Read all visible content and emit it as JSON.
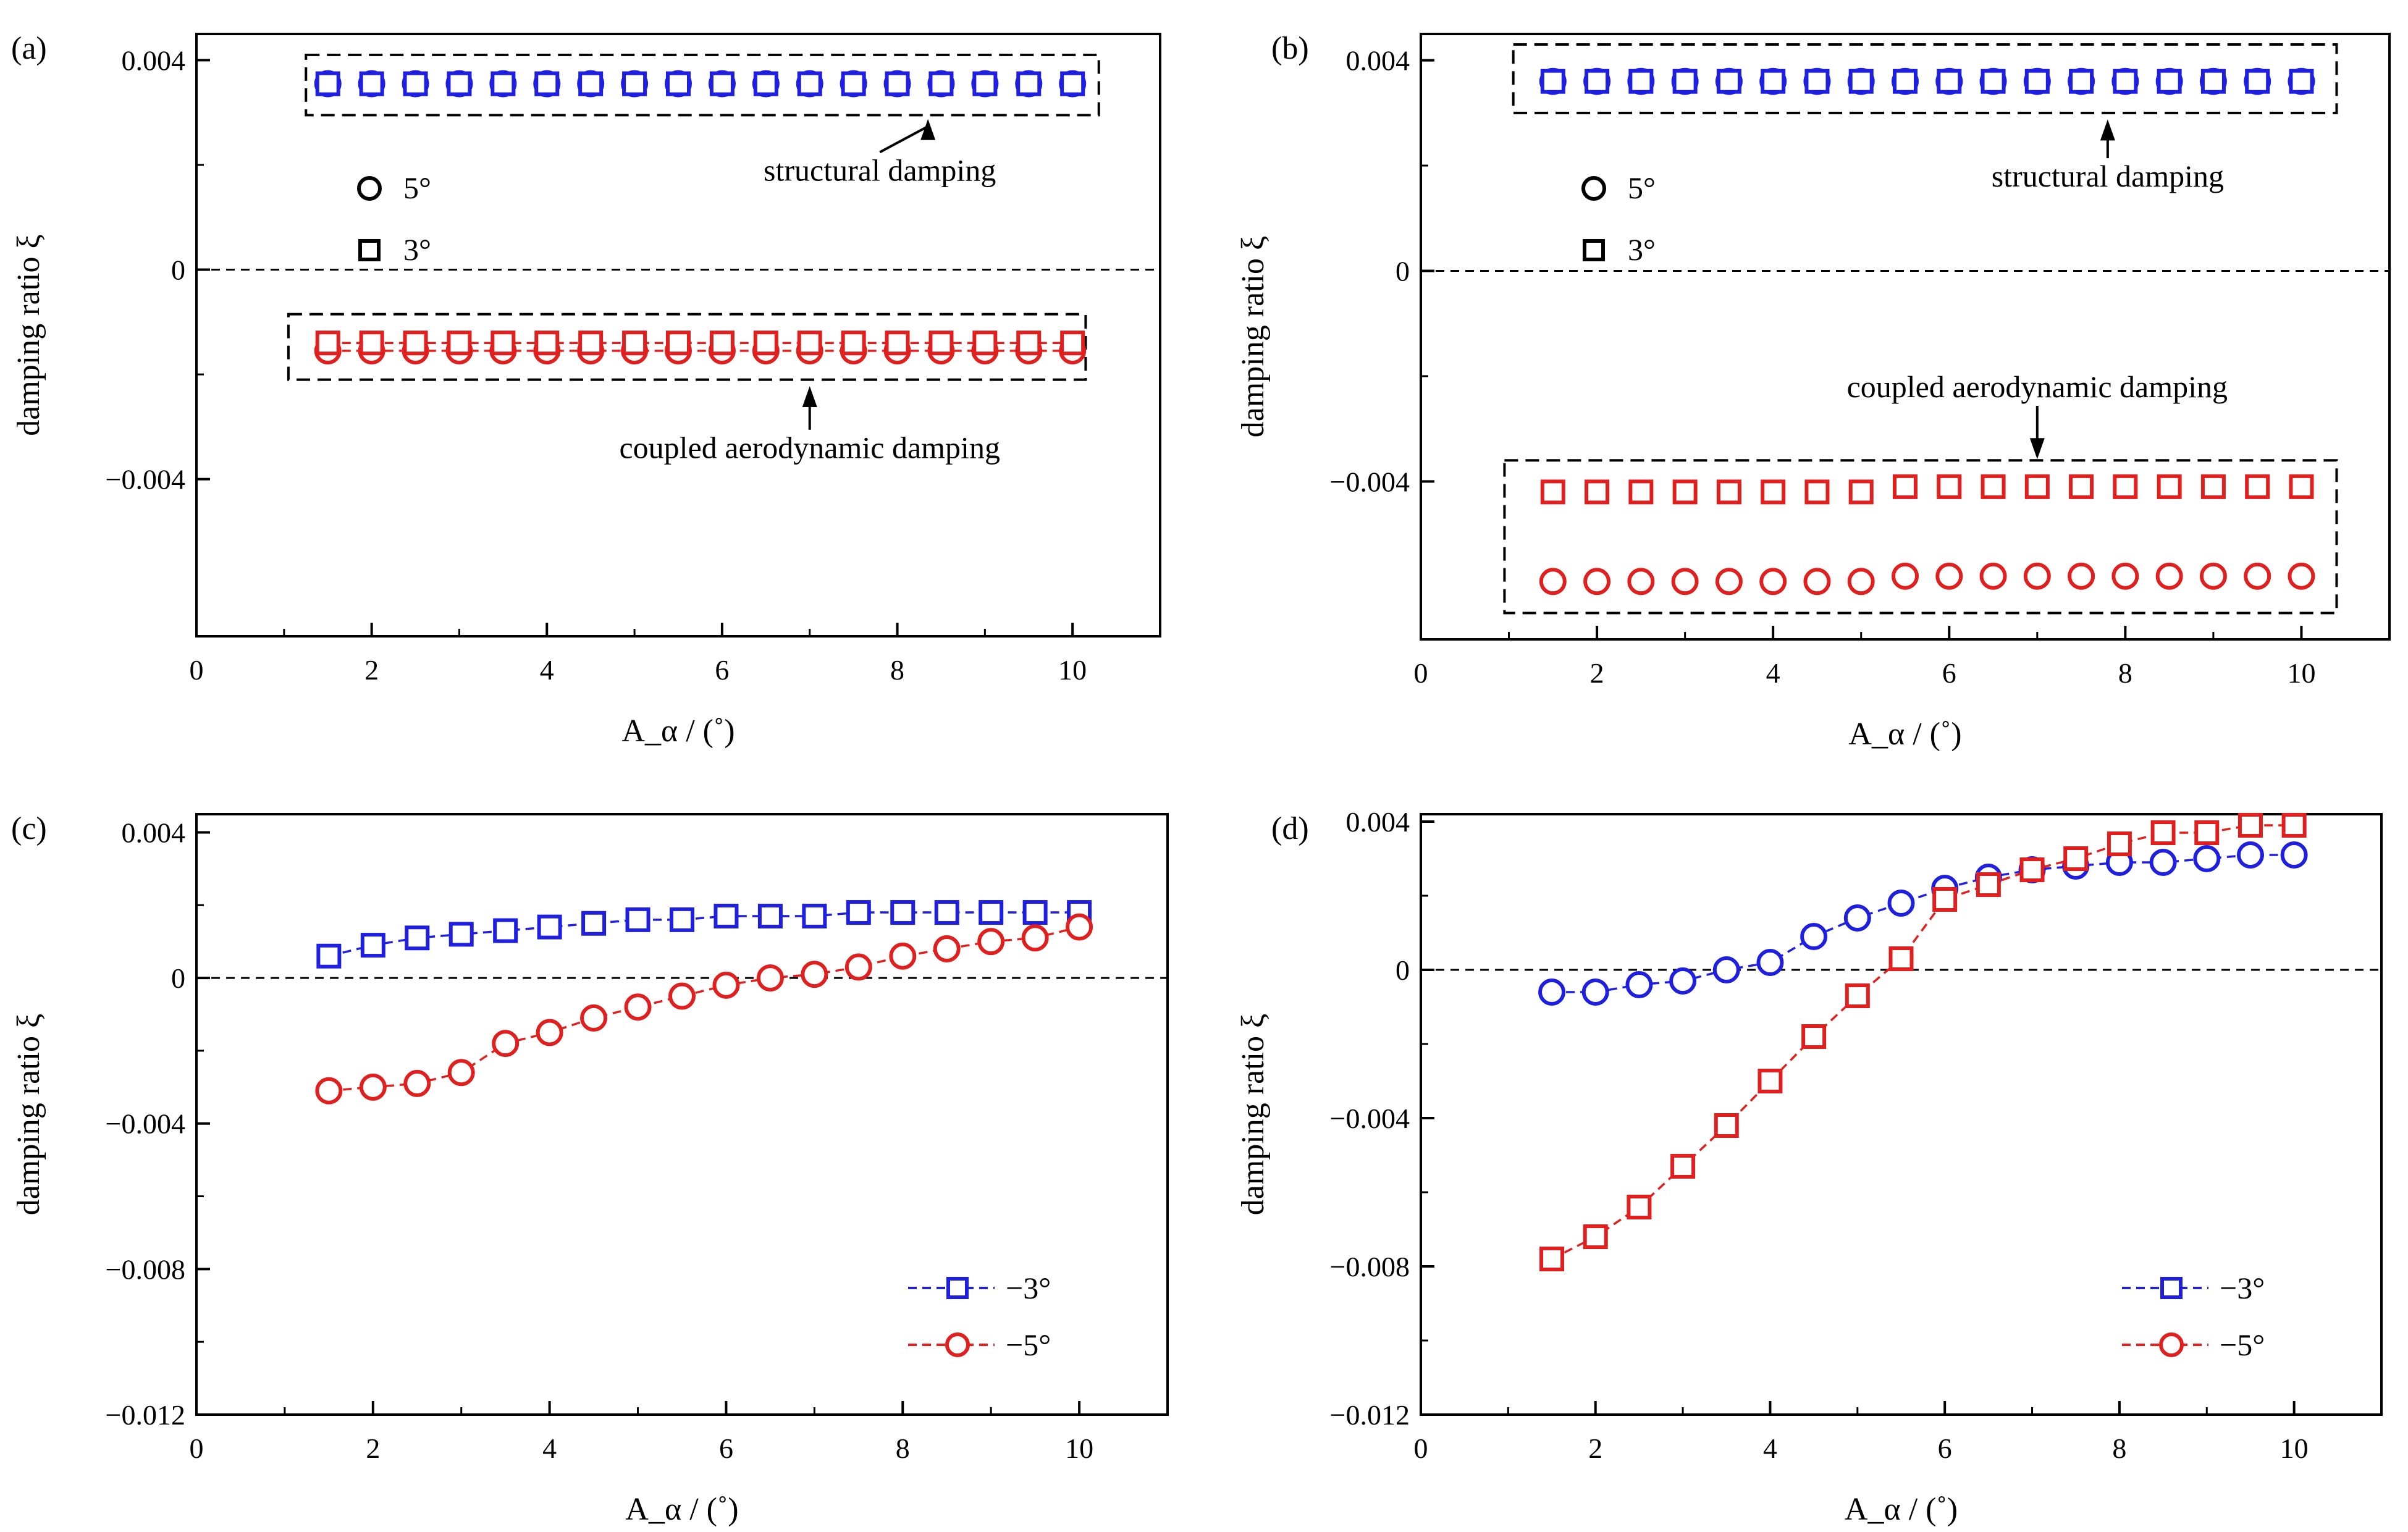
{
  "chart_data": [
    {
      "panel": "(a)",
      "type": "scatter",
      "xlabel": "A_α / (˚)",
      "ylabel": "damping ratio ξ",
      "xlim": [
        0,
        11
      ],
      "ylim": [
        -0.007,
        0.0045
      ],
      "xticks": [
        "0",
        "2",
        "4",
        "6",
        "8",
        "10"
      ],
      "yticks": [
        {
          "v": 0.004,
          "t": "0.004"
        },
        {
          "v": 0,
          "t": "0"
        },
        {
          "v": -0.004,
          "t": "−0.004"
        }
      ],
      "x": [
        1.5,
        2,
        2.5,
        3,
        3.5,
        4,
        4.5,
        5,
        5.5,
        6,
        6.5,
        7,
        7.5,
        8,
        8.5,
        9,
        9.5,
        10
      ],
      "series": [
        {
          "marker": "circle",
          "color": "#1f1fe0",
          "connected": false,
          "values": [
            0.00355,
            0.00355,
            0.00355,
            0.00355,
            0.00355,
            0.00355,
            0.00355,
            0.00355,
            0.00355,
            0.00355,
            0.00355,
            0.00355,
            0.00355,
            0.00355,
            0.00355,
            0.00355,
            0.00355,
            0.00355
          ]
        },
        {
          "marker": "square",
          "color": "#1f1fe0",
          "connected": false,
          "values": [
            0.00355,
            0.00355,
            0.00355,
            0.00355,
            0.00355,
            0.00355,
            0.00355,
            0.00355,
            0.00355,
            0.00355,
            0.00355,
            0.00355,
            0.00355,
            0.00355,
            0.00355,
            0.00355,
            0.00355,
            0.00355
          ]
        },
        {
          "marker": "circle",
          "color": "#e01f1f",
          "connected": true,
          "values": [
            -0.00155,
            -0.00155,
            -0.00155,
            -0.00155,
            -0.00155,
            -0.00155,
            -0.00155,
            -0.00155,
            -0.00155,
            -0.00155,
            -0.00155,
            -0.00155,
            -0.00155,
            -0.00155,
            -0.00155,
            -0.00155,
            -0.00155,
            -0.00155
          ]
        },
        {
          "marker": "square",
          "color": "#e01f1f",
          "connected": true,
          "values": [
            -0.0014,
            -0.0014,
            -0.0014,
            -0.0014,
            -0.0014,
            -0.0014,
            -0.0014,
            -0.0014,
            -0.0014,
            -0.0014,
            -0.0014,
            -0.0014,
            -0.0014,
            -0.0014,
            -0.0014,
            -0.0014,
            -0.0014,
            -0.0014
          ]
        }
      ],
      "legend": {
        "placement": "upper-left",
        "entries": [
          {
            "marker": "circle",
            "label": "5°"
          },
          {
            "marker": "square",
            "label": "3°"
          }
        ]
      },
      "boxes": [
        {
          "x": [
            1.25,
            10.3
          ],
          "y": [
            0.00295,
            0.0041
          ]
        },
        {
          "x": [
            1.05,
            10.15
          ],
          "y": [
            -0.0021,
            -0.00085
          ]
        }
      ],
      "annotations": [
        {
          "text": "structural damping",
          "tx": 7.8,
          "ty": 0.0017,
          "ax": 8.35,
          "ay": 0.0029
        },
        {
          "text": "coupled aerodynamic damping",
          "tx": 7.0,
          "ty": -0.0036,
          "ax": 7.0,
          "ay": -0.0022
        }
      ]
    },
    {
      "panel": "(b)",
      "type": "scatter",
      "xlabel": "A_α / (˚)",
      "ylabel": "damping ratio ξ",
      "xlim": [
        0,
        11
      ],
      "ylim": [
        -0.007,
        0.0045
      ],
      "xticks": [
        "0",
        "2",
        "4",
        "6",
        "8",
        "10"
      ],
      "yticks": [
        {
          "v": 0.004,
          "t": "0.004"
        },
        {
          "v": 0,
          "t": "0"
        },
        {
          "v": -0.004,
          "t": "−0.004"
        }
      ],
      "x": [
        1.5,
        2,
        2.5,
        3,
        3.5,
        4,
        4.5,
        5,
        5.5,
        6,
        6.5,
        7,
        7.5,
        8,
        8.5,
        9,
        9.5,
        10
      ],
      "series": [
        {
          "marker": "circle",
          "color": "#1f1fe0",
          "connected": false,
          "values": [
            0.0036,
            0.0036,
            0.0036,
            0.0036,
            0.0036,
            0.0036,
            0.0036,
            0.0036,
            0.0036,
            0.0036,
            0.0036,
            0.0036,
            0.0036,
            0.0036,
            0.0036,
            0.0036,
            0.0036,
            0.0036
          ]
        },
        {
          "marker": "square",
          "color": "#1f1fe0",
          "connected": false,
          "values": [
            0.0036,
            0.0036,
            0.0036,
            0.0036,
            0.0036,
            0.0036,
            0.0036,
            0.0036,
            0.0036,
            0.0036,
            0.0036,
            0.0036,
            0.0036,
            0.0036,
            0.0036,
            0.0036,
            0.0036,
            0.0036
          ]
        },
        {
          "marker": "square",
          "color": "#e01f1f",
          "connected": false,
          "values": [
            -0.0042,
            -0.0042,
            -0.0042,
            -0.0042,
            -0.0042,
            -0.0042,
            -0.0042,
            -0.0042,
            -0.0041,
            -0.0041,
            -0.0041,
            -0.0041,
            -0.0041,
            -0.0041,
            -0.0041,
            -0.0041,
            -0.0041,
            -0.0041
          ]
        },
        {
          "marker": "circle",
          "color": "#e01f1f",
          "connected": false,
          "values": [
            -0.0059,
            -0.0059,
            -0.0059,
            -0.0059,
            -0.0059,
            -0.0059,
            -0.0059,
            -0.0059,
            -0.0058,
            -0.0058,
            -0.0058,
            -0.0058,
            -0.0058,
            -0.0058,
            -0.0058,
            -0.0058,
            -0.0058,
            -0.0058
          ]
        }
      ],
      "legend": {
        "placement": "upper-left",
        "entries": [
          {
            "marker": "circle",
            "label": "5°"
          },
          {
            "marker": "square",
            "label": "3°"
          }
        ]
      },
      "boxes": [
        {
          "x": [
            1.05,
            10.4
          ],
          "y": [
            0.003,
            0.0043
          ]
        },
        {
          "x": [
            0.95,
            10.4
          ],
          "y": [
            -0.0065,
            -0.0036
          ]
        }
      ],
      "annotations": [
        {
          "text": "structural damping",
          "tx": 7.8,
          "ty": 0.0016,
          "ax": 7.8,
          "ay": 0.0029
        },
        {
          "text": "coupled aerodynamic damping",
          "tx": 7.0,
          "ty": -0.0024,
          "ax": 7.0,
          "ay": -0.0036
        }
      ]
    },
    {
      "panel": "(c)",
      "type": "line",
      "xlabel": "A_α / (˚)",
      "ylabel": "damping ratio ξ",
      "xlim": [
        0,
        11
      ],
      "ylim": [
        -0.012,
        0.0045
      ],
      "xticks": [
        "0",
        "2",
        "4",
        "6",
        "8",
        "10"
      ],
      "yticks": [
        {
          "v": 0.004,
          "t": "0.004"
        },
        {
          "v": 0,
          "t": "0"
        },
        {
          "v": -0.004,
          "t": "−0.004"
        },
        {
          "v": -0.008,
          "t": "−0.008"
        },
        {
          "v": -0.012,
          "t": "−0.012"
        }
      ],
      "x": [
        1.5,
        2,
        2.5,
        3,
        3.5,
        4,
        4.5,
        5,
        5.5,
        6,
        6.5,
        7,
        7.5,
        8,
        8.5,
        9,
        9.5,
        10
      ],
      "series": [
        {
          "name": "−3°",
          "marker": "square",
          "color": "#1f1fe0",
          "connected": true,
          "values": [
            0.0006,
            0.0009,
            0.0011,
            0.0012,
            0.0013,
            0.0014,
            0.0015,
            0.0016,
            0.0016,
            0.0017,
            0.0017,
            0.0017,
            0.0018,
            0.0018,
            0.0018,
            0.0018,
            0.0018,
            0.0018
          ]
        },
        {
          "name": "−5°",
          "marker": "circle",
          "color": "#e01f1f",
          "connected": true,
          "values": [
            -0.0031,
            -0.003,
            -0.0029,
            -0.0026,
            -0.0018,
            -0.0015,
            -0.0011,
            -0.0008,
            -0.0005,
            -0.0002,
            0.0,
            0.0001,
            0.0003,
            0.0006,
            0.0008,
            0.001,
            0.0011,
            0.0014
          ]
        }
      ],
      "legend": {
        "placement": "lower-right",
        "entries": [
          {
            "marker": "square",
            "color": "#1f1fe0",
            "label": "−3°"
          },
          {
            "marker": "circle",
            "color": "#e01f1f",
            "label": "−5°"
          }
        ]
      }
    },
    {
      "panel": "(d)",
      "type": "line",
      "xlabel": "A_α / (˚)",
      "ylabel": "damping ratio ξ",
      "xlim": [
        0,
        11
      ],
      "ylim": [
        -0.012,
        0.0042
      ],
      "xticks": [
        "0",
        "2",
        "4",
        "6",
        "8",
        "10"
      ],
      "yticks": [
        {
          "v": 0.004,
          "t": "0.004"
        },
        {
          "v": 0,
          "t": "0"
        },
        {
          "v": -0.004,
          "t": "−0.004"
        },
        {
          "v": -0.008,
          "t": "−0.008"
        },
        {
          "v": -0.012,
          "t": "−0.012"
        }
      ],
      "x": [
        1.5,
        2,
        2.5,
        3,
        3.5,
        4,
        4.5,
        5,
        5.5,
        6,
        6.5,
        7,
        7.5,
        8,
        8.5,
        9,
        9.5,
        10
      ],
      "series": [
        {
          "name": "−3°",
          "marker": "square",
          "color": "#1f1fe0",
          "connected": true,
          "values": [
            -0.0006,
            -0.0006,
            -0.0004,
            -0.0003,
            0.0,
            0.0002,
            0.0009,
            0.0014,
            0.0018,
            0.0022,
            0.0025,
            0.0027,
            0.0028,
            0.0029,
            0.0029,
            0.003,
            0.0031,
            0.0031
          ]
        },
        {
          "name": "−5°",
          "marker": "circle",
          "color": "#e01f1f",
          "connected": true,
          "values": [
            -0.0078,
            -0.0072,
            -0.0064,
            -0.0053,
            -0.0042,
            -0.003,
            -0.0018,
            -0.0007,
            0.0003,
            0.0019,
            0.0023,
            0.0027,
            0.003,
            0.0034,
            0.0037,
            0.0037,
            0.0039,
            0.0039
          ]
        }
      ],
      "series_markers_shown": [
        {
          "marker": "circle",
          "color": "#1f1fe0"
        },
        {
          "marker": "square",
          "color": "#e01f1f"
        }
      ],
      "legend": {
        "placement": "lower-right",
        "entries": [
          {
            "marker": "square",
            "color": "#1f1fe0",
            "label": "−3°"
          },
          {
            "marker": "circle",
            "color": "#e01f1f",
            "label": "−5°"
          }
        ]
      }
    }
  ]
}
